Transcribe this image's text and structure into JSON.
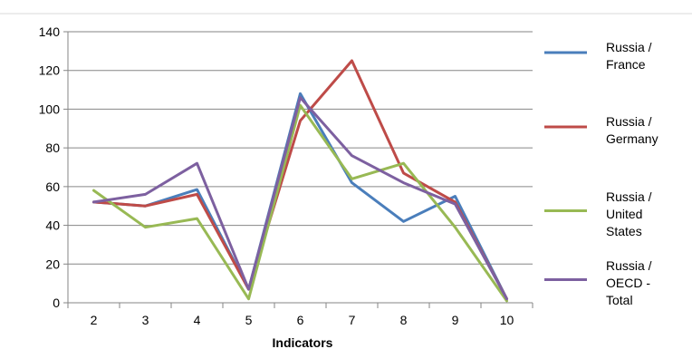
{
  "chart_data": {
    "type": "line",
    "title": "",
    "xlabel": "Indicators",
    "ylabel": "",
    "x": [
      2,
      3,
      4,
      5,
      6,
      7,
      8,
      9,
      10
    ],
    "ylim": [
      0,
      140
    ],
    "yticks": [
      0,
      20,
      40,
      60,
      80,
      100,
      120,
      140
    ],
    "grid": true,
    "legend_position": "right",
    "series": [
      {
        "name": "Russia / France",
        "legend_lines": [
          "Russia /",
          "France"
        ],
        "color": "#4a7ebb",
        "values": [
          52,
          50,
          58.5,
          7,
          108,
          62,
          42,
          55,
          2
        ]
      },
      {
        "name": "Russia / Germany",
        "legend_lines": [
          "Russia /",
          "Germany"
        ],
        "color": "#be4b48",
        "values": [
          52,
          50,
          56,
          7,
          94,
          125,
          67,
          52,
          2
        ]
      },
      {
        "name": "Russia / United States",
        "legend_lines": [
          "Russia /",
          "United",
          "States"
        ],
        "color": "#98b954",
        "values": [
          58,
          39,
          43.5,
          2,
          102,
          64,
          72,
          39,
          1
        ]
      },
      {
        "name": "Russia / OECD - Total",
        "legend_lines": [
          "Russia /",
          "OECD -",
          "Total"
        ],
        "color": "#7d60a0",
        "values": [
          52,
          56,
          72,
          7,
          106,
          76,
          62,
          51,
          2
        ]
      }
    ]
  }
}
